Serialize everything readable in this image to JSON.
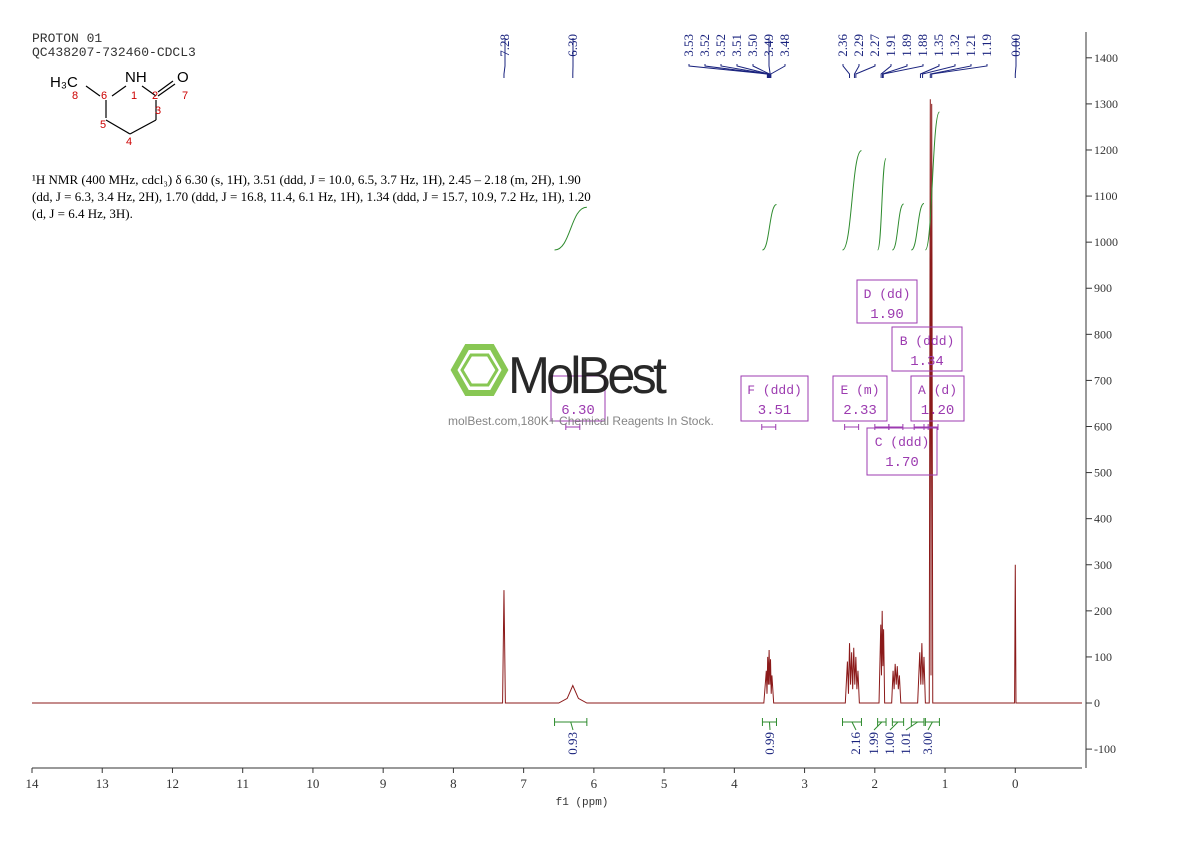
{
  "header": {
    "title": "PROTON 01",
    "sample": "QC438207-732460-CDCL3"
  },
  "structure": {
    "methyl": "H₃C",
    "amine": "NH",
    "oxygen": "O",
    "numbers": [
      "8",
      "6",
      "1",
      "2",
      "7",
      "5",
      "4",
      "3"
    ]
  },
  "description": "¹H NMR (400 MHz, cdcl₃) δ 6.30 (s, 1H), 3.51 (ddd, J = 10.0, 6.5, 3.7 Hz, 1H), 2.45 – 2.18 (m, 2H), 1.90 (dd, J = 6.3, 3.4 Hz, 2H), 1.70 (ddd, J = 16.8, 11.4, 6.1 Hz, 1H), 1.34 (ddd, J = 15.7, 10.9, 7.2 Hz, 1H), 1.20 (d, J = 6.4 Hz, 3H).",
  "watermark": {
    "brand": "MolBest",
    "tagline": "molBest.com,180K+ Chemical Reagents In Stock."
  },
  "chart_data": {
    "type": "line",
    "x_label": "f1 (ppm)",
    "xlim": [
      14,
      -0.95
    ],
    "xticks": [
      14,
      13,
      12,
      11,
      10,
      9,
      8,
      7,
      6,
      5,
      4,
      3,
      2,
      1,
      0
    ],
    "ylim": [
      -141,
      1456
    ],
    "yticks": [
      -100,
      0,
      100,
      200,
      300,
      400,
      500,
      600,
      700,
      800,
      900,
      1000,
      1100,
      1200,
      1300,
      1400
    ],
    "color": "#8b1a1a",
    "x": [
      14,
      7.3,
      7.28,
      7.26,
      6.5,
      6.38,
      6.3,
      6.22,
      6.1,
      3.58,
      3.545,
      3.535,
      3.525,
      3.515,
      3.505,
      3.495,
      3.485,
      3.475,
      3.465,
      3.44,
      2.42,
      2.39,
      2.375,
      2.36,
      2.345,
      2.33,
      2.315,
      2.3,
      2.285,
      2.27,
      2.255,
      2.24,
      2.22,
      1.94,
      1.915,
      1.905,
      1.895,
      1.885,
      1.875,
      1.86,
      1.76,
      1.74,
      1.725,
      1.71,
      1.695,
      1.68,
      1.665,
      1.65,
      1.63,
      1.39,
      1.36,
      1.345,
      1.33,
      1.315,
      1.3,
      1.28,
      1.225,
      1.21,
      1.2,
      1.19,
      1.175,
      0.01,
      0.0,
      -0.01,
      -0.95
    ],
    "values": [
      0,
      0,
      245,
      0,
      0,
      10,
      38,
      10,
      0,
      0,
      70,
      20,
      100,
      40,
      115,
      40,
      95,
      20,
      60,
      0,
      0,
      90,
      20,
      130,
      40,
      110,
      30,
      120,
      40,
      100,
      30,
      70,
      0,
      0,
      170,
      60,
      200,
      80,
      160,
      0,
      0,
      70,
      30,
      85,
      40,
      80,
      30,
      60,
      0,
      0,
      110,
      40,
      130,
      40,
      100,
      0,
      0,
      1310,
      60,
      1300,
      0,
      0,
      300,
      0,
      0
    ],
    "peaks": {
      "values": [
        7.28,
        6.3,
        3.53,
        3.52,
        3.52,
        3.51,
        3.5,
        3.49,
        3.48,
        2.36,
        2.29,
        2.27,
        1.91,
        1.89,
        1.88,
        1.35,
        1.32,
        1.21,
        1.19,
        0
      ],
      "value_labels": [
        "7.28",
        "6.30",
        "3.53",
        "3.52",
        "3.52",
        "3.51",
        "3.50",
        "3.49",
        "3.48",
        "2.36",
        "2.29",
        "2.27",
        "1.91",
        "1.89",
        "1.88",
        "1.35",
        "1.32",
        "1.21",
        "1.19",
        "0.00"
      ]
    },
    "integrals": {
      "from": [
        6.56,
        3.6,
        2.46,
        1.96,
        1.75,
        1.48,
        1.28
      ],
      "to": [
        6.1,
        3.4,
        2.19,
        1.84,
        1.59,
        1.3,
        1.08
      ],
      "values": [
        0.93,
        0.99,
        2.16,
        1.99,
        1.0,
        1.01,
        3.0
      ],
      "value_labels": [
        "0.93",
        "0.99",
        "2.16",
        "1.99",
        "1.00",
        "1.01",
        "3.00"
      ]
    },
    "multiplets": [
      {
        "shift": 6.3,
        "shift_label": "6.30"
      },
      {
        "name": "F (ddd)",
        "shift": 3.51,
        "shift_label": "3.51"
      },
      {
        "name": "E (m)",
        "shift": 2.33,
        "shift_label": "2.33"
      },
      {
        "name": "A (d)",
        "shift": 1.2,
        "shift_label": "1.20"
      },
      {
        "name": "D (dd)",
        "shift": 1.9,
        "shift_label": "1.90"
      },
      {
        "name": "B (ddd)",
        "shift": 1.34,
        "shift_label": "1.34"
      },
      {
        "name": "C (ddd)",
        "shift": 1.7,
        "shift_label": "1.70"
      }
    ]
  }
}
